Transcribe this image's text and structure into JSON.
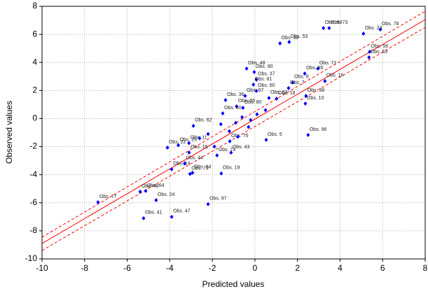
{
  "chart_data": {
    "type": "scatter",
    "x_label": "Predicted values",
    "y_label": "Observed values",
    "xlim": [
      -10,
      8
    ],
    "ylim": [
      -10,
      8
    ],
    "xticks": [
      -10,
      -8,
      -6,
      -4,
      -2,
      0,
      2,
      4,
      6,
      8
    ],
    "yticks": [
      -10,
      -8,
      -6,
      -4,
      -2,
      0,
      2,
      4,
      6,
      8
    ],
    "grid": true,
    "series": [
      {
        "color": "#0000ff",
        "labels": [
          "Obs. 73",
          "Obs. 68",
          "Obs. 23",
          "Obs. 78",
          "Obs. 58",
          "Obs. 63",
          "Obs. 53",
          "Obs. 39",
          "Obs. 90",
          "Obs. 71",
          "Obs. 85",
          "Obs. 8",
          "Obs. 48",
          "Obs. 37",
          "Obs. 81",
          "Obs. 16",
          "Obs. 7",
          "Obs. 36",
          "Obs. 67",
          "Obs. 60",
          "Obs. 83",
          "Obs. 38",
          "Obs. 10",
          "Obs. 18",
          "Obs. 65",
          "Obs. 80",
          "Obs. 40",
          "Obs. 62",
          "Obs. 96",
          "Obs. 5",
          "Obs. 75",
          "Obs. 22",
          "Obs. 26",
          "Obs. 11",
          "Obs. 14",
          "Obs. 43",
          "Obs. 74",
          "Obs. 19",
          "Obs. 94",
          "Obs. 15",
          "Obs. 79",
          "Obs. 44",
          "Obs. 49",
          "Obs. 64",
          "Obs. 24",
          "Obs. 77",
          "Obs. 41",
          "Obs. 47",
          "Obs. 97",
          null,
          null,
          null,
          null,
          null,
          null,
          null,
          null,
          null,
          null,
          null,
          null
        ],
        "x": [
          3.49,
          3.22,
          5.1,
          5.89,
          5.39,
          5.36,
          1.61,
          1.18,
          -0.03,
          2.96,
          2.34,
          1.78,
          -0.39,
          0.07,
          -0.07,
          3.29,
          1.58,
          -1.38,
          -0.46,
          0.07,
          0.66,
          2.4,
          2.37,
          1.02,
          -0.86,
          -0.56,
          -1.51,
          -2.89,
          2.5,
          0.53,
          -1.18,
          -4.11,
          -3.6,
          -3.1,
          -3.91,
          -1.12,
          -1.78,
          -1.58,
          -2.93,
          -3.09,
          -3.05,
          -3.3,
          -5.39,
          -5.13,
          -4.64,
          -7.37,
          -5.23,
          -3.91,
          -2.2,
          -0.9,
          -0.6,
          -0.3,
          0.1,
          -1.2,
          -1.6,
          -2.2,
          -0.8,
          -0.2,
          0.5,
          -2.6,
          -1.9
        ],
        "values": [
          6.45,
          6.45,
          6.05,
          6.35,
          4.76,
          4.36,
          5.46,
          5.36,
          3.31,
          3.56,
          3.21,
          2.57,
          3.56,
          2.77,
          2.42,
          2.67,
          2.17,
          1.32,
          1.62,
          1.97,
          1.47,
          1.62,
          1.07,
          1.42,
          0.87,
          0.77,
          0.37,
          -0.52,
          -1.17,
          -1.52,
          -1.62,
          -2.07,
          -1.9,
          -1.75,
          -3.61,
          -2.42,
          -2.62,
          -3.91,
          -3.86,
          -2.42,
          -3.95,
          -3.2,
          -5.21,
          -5.16,
          -5.81,
          -5.96,
          -7.1,
          -7.0,
          -6.1,
          -0.3,
          0.1,
          -0.6,
          0.3,
          -0.9,
          -0.4,
          -1.1,
          -1.3,
          -0.1,
          0.6,
          -1.4,
          -2.0
        ]
      }
    ],
    "fit_lines": [
      {
        "color": "#ff0000",
        "style": "solid",
        "x": [
          -10,
          8
        ],
        "y": [
          -8.9,
          7.05
        ]
      },
      {
        "color": "#ff0000",
        "style": "dashed",
        "x": [
          -10,
          8
        ],
        "y": [
          -8.45,
          7.65
        ]
      },
      {
        "color": "#ff0000",
        "style": "dashed",
        "x": [
          -10,
          8
        ],
        "y": [
          -9.4,
          6.5
        ]
      }
    ]
  }
}
